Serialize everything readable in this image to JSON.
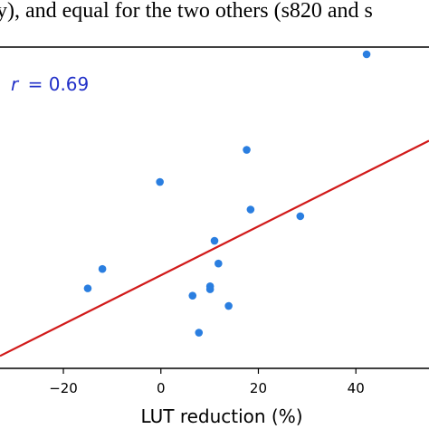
{
  "caption_fragment": "y), and equal for the two others (s820 and s",
  "chart_data": {
    "type": "scatter",
    "xlabel": "LUT reduction (%)",
    "ylabel": "",
    "x_ticks": [
      -20,
      0,
      20,
      40
    ],
    "xlim": [
      -33,
      55
    ],
    "ylim": [
      0,
      100
    ],
    "grid": false,
    "legend": "none",
    "annotation": {
      "symbol": "r",
      "equals": "= ",
      "value": "0.69"
    },
    "annotation_color": "#2130c8",
    "point_color": "#2a7ee0",
    "fit_line_color": "#d11a1a",
    "points": [
      {
        "x": 42.2,
        "y": 100
      },
      {
        "x": 17.6,
        "y": 68.5
      },
      {
        "x": -0.2,
        "y": 57.9
      },
      {
        "x": 18.4,
        "y": 48.8
      },
      {
        "x": 28.6,
        "y": 46.6
      },
      {
        "x": 11.0,
        "y": 38.5
      },
      {
        "x": 11.8,
        "y": 31.0
      },
      {
        "x": -12.0,
        "y": 29.2
      },
      {
        "x": 10.1,
        "y": 23.5
      },
      {
        "x": 10.1,
        "y": 22.5
      },
      {
        "x": -15.0,
        "y": 22.8
      },
      {
        "x": 6.5,
        "y": 20.4
      },
      {
        "x": 13.9,
        "y": 17.0
      },
      {
        "x": 7.8,
        "y": 8.2
      }
    ],
    "fit_line": {
      "x": [
        -33,
        55
      ],
      "y": [
        0.5,
        71.5
      ]
    }
  }
}
